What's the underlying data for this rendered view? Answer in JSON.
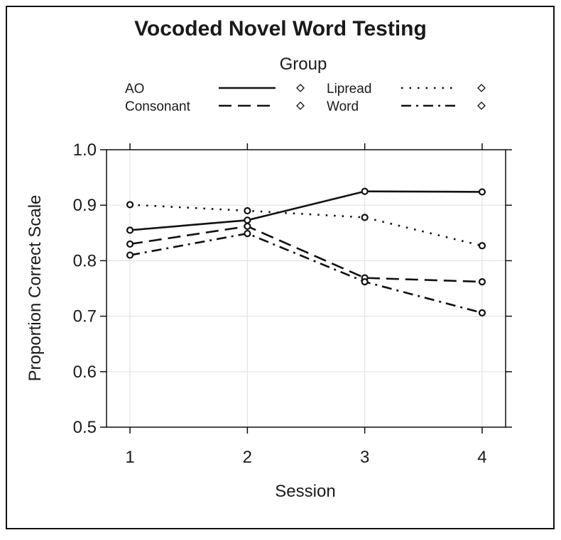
{
  "chart_data": {
    "type": "line",
    "title": "Vocoded Novel Word Testing",
    "xlabel": "Session",
    "ylabel": "Proportion Correct Scale",
    "categories": [
      "1",
      "2",
      "3",
      "4"
    ],
    "x": [
      1,
      2,
      3,
      4
    ],
    "xlim": [
      0.8,
      4.2
    ],
    "ylim": [
      0.5,
      1.0
    ],
    "yticks": [
      0.5,
      0.6,
      0.7,
      0.8,
      0.9,
      1.0
    ],
    "ytick_labels": [
      "0.5",
      "0.6",
      "0.7",
      "0.8",
      "0.9",
      "1.0"
    ],
    "grid": true,
    "legend": {
      "title": "Group",
      "position": "top",
      "columns": 2
    },
    "series": [
      {
        "name": "AO",
        "line_style": "solid",
        "values": [
          0.855,
          0.873,
          0.925,
          0.924
        ]
      },
      {
        "name": "Consonant",
        "line_style": "dashed",
        "values": [
          0.83,
          0.862,
          0.769,
          0.762
        ]
      },
      {
        "name": "Lipread",
        "line_style": "dotted",
        "values": [
          0.901,
          0.89,
          0.878,
          0.827
        ]
      },
      {
        "name": "Word",
        "line_style": "dashdot",
        "values": [
          0.81,
          0.849,
          0.762,
          0.706
        ]
      }
    ],
    "color": "#111111"
  }
}
